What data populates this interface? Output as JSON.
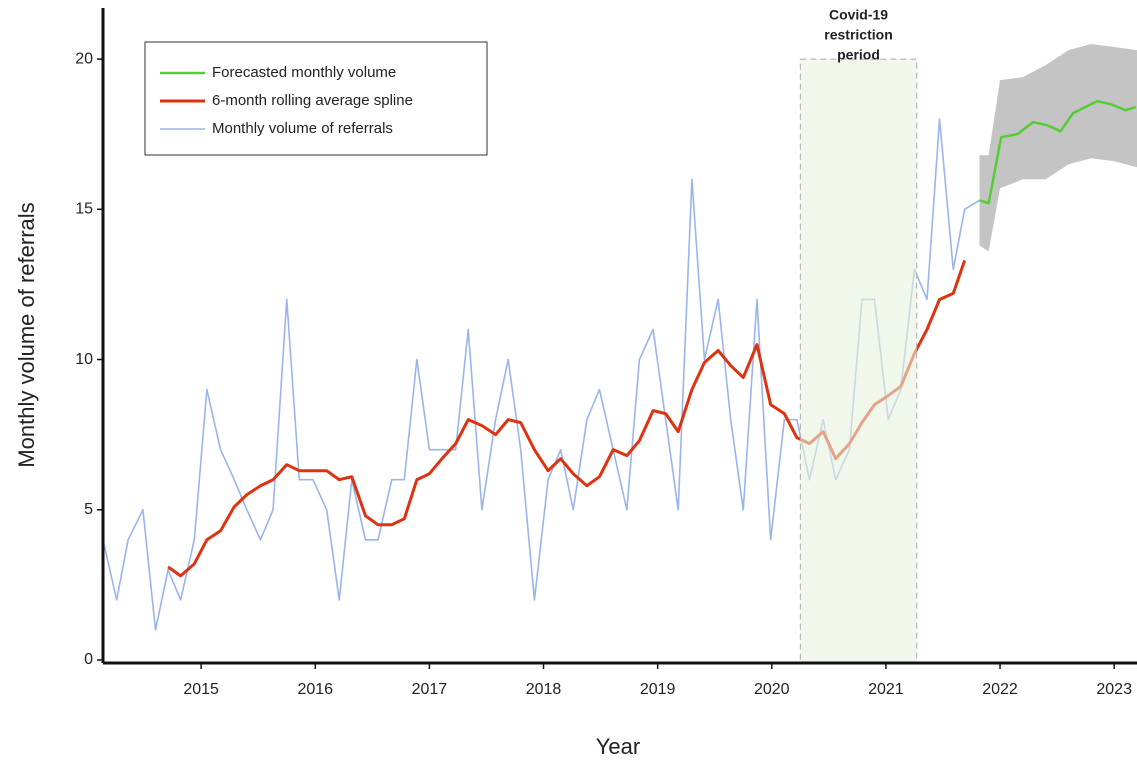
{
  "chart_data": {
    "type": "line",
    "x_label": "Year",
    "y_label": "Monthly volume of referrals",
    "xlim": [
      2014.14,
      2023.2
    ],
    "ylim": [
      -0.1,
      21.7
    ],
    "xticks": [
      2015,
      2016,
      2017,
      2018,
      2019,
      2020,
      2021,
      2022,
      2023
    ],
    "yticks": [
      0,
      5,
      10,
      15,
      20
    ],
    "covid_period": [
      2020.25,
      2021.27
    ],
    "covid_label": [
      "Covid-19",
      "restriction",
      "period"
    ],
    "covid_color": "#e8f2dc",
    "forecast_band": {
      "color": "#c4c4c4",
      "x": [
        2021.82,
        2021.9,
        2022.0,
        2022.2,
        2022.4,
        2022.6,
        2022.8,
        2023.0,
        2023.2
      ],
      "lower": [
        13.8,
        13.6,
        15.7,
        16.0,
        16.0,
        16.5,
        16.7,
        16.6,
        16.4
      ],
      "upper": [
        16.8,
        16.8,
        19.3,
        19.4,
        19.8,
        20.3,
        20.5,
        20.4,
        20.3
      ]
    },
    "series": [
      {
        "name": "Forecasted monthly volume",
        "color": "#55cc33",
        "x": [
          2021.82,
          2021.9,
          2022.01,
          2022.15,
          2022.29,
          2022.41,
          2022.53,
          2022.64,
          2022.85,
          2022.97,
          2023.1,
          2023.19
        ],
        "values": [
          15.3,
          15.2,
          17.4,
          17.5,
          17.9,
          17.8,
          17.6,
          18.2,
          18.6,
          18.5,
          18.3,
          18.4
        ]
      },
      {
        "name": "6-month rolling average spline",
        "color": "#dd3311",
        "x": [
          2014.71,
          2014.82,
          2014.94,
          2015.05,
          2015.17,
          2015.29,
          2015.4,
          2015.52,
          2015.63,
          2015.75,
          2015.86,
          2015.98,
          2016.1,
          2016.21,
          2016.32,
          2016.44,
          2016.55,
          2016.67,
          2016.78,
          2016.89,
          2017.0,
          2017.11,
          2017.23,
          2017.34,
          2017.46,
          2017.58,
          2017.69,
          2017.8,
          2017.92,
          2018.04,
          2018.15,
          2018.26,
          2018.38,
          2018.49,
          2018.61,
          2018.73,
          2018.84,
          2018.96,
          2019.07,
          2019.18,
          2019.3,
          2019.41,
          2019.53,
          2019.64,
          2019.75,
          2019.87,
          2019.99,
          2020.11,
          2020.22,
          2020.33,
          2020.45,
          2020.56,
          2020.68,
          2020.79,
          2020.9,
          2021.02,
          2021.13,
          2021.25,
          2021.36,
          2021.47,
          2021.59,
          2021.69
        ],
        "values": [
          3.1,
          2.8,
          3.2,
          4.0,
          4.3,
          5.1,
          5.5,
          5.8,
          6.0,
          6.5,
          6.3,
          6.3,
          6.3,
          6.0,
          6.1,
          4.8,
          4.5,
          4.5,
          4.7,
          6.0,
          6.2,
          6.7,
          7.2,
          8.0,
          7.8,
          7.5,
          8.0,
          7.9,
          7.0,
          6.3,
          6.7,
          6.2,
          5.8,
          6.1,
          7.0,
          6.8,
          7.3,
          8.3,
          8.2,
          7.6,
          9.0,
          9.9,
          10.3,
          9.8,
          9.4,
          10.5,
          8.5,
          8.2,
          7.4,
          7.2,
          7.6,
          6.7,
          7.2,
          7.9,
          8.5,
          8.8,
          9.1,
          10.2,
          11.0,
          12.0,
          12.2,
          13.3
        ]
      },
      {
        "name": "Monthly volume of referrals",
        "color": "#99b4ee",
        "x": [
          2014.14,
          2014.26,
          2014.36,
          2014.49,
          2014.6,
          2014.71,
          2014.82,
          2014.94,
          2015.05,
          2015.17,
          2015.29,
          2015.4,
          2015.52,
          2015.63,
          2015.75,
          2015.86,
          2015.98,
          2016.1,
          2016.21,
          2016.32,
          2016.44,
          2016.55,
          2016.67,
          2016.78,
          2016.89,
          2017.0,
          2017.11,
          2017.23,
          2017.34,
          2017.46,
          2017.58,
          2017.69,
          2017.8,
          2017.92,
          2018.04,
          2018.15,
          2018.26,
          2018.38,
          2018.49,
          2018.61,
          2018.73,
          2018.84,
          2018.96,
          2019.07,
          2019.18,
          2019.3,
          2019.41,
          2019.53,
          2019.64,
          2019.75,
          2019.87,
          2019.99,
          2020.11,
          2020.22,
          2020.33,
          2020.45,
          2020.56,
          2020.68,
          2020.79,
          2020.9,
          2021.02,
          2021.13,
          2021.25,
          2021.36,
          2021.47,
          2021.59,
          2021.69,
          2021.82
        ],
        "values": [
          4,
          2,
          4,
          5,
          1,
          3,
          2,
          4,
          9,
          7,
          6,
          5,
          4,
          5,
          12,
          6,
          6,
          5,
          2,
          6,
          4,
          4,
          6,
          6,
          10,
          7,
          7,
          7,
          11,
          5,
          8,
          10,
          7,
          2,
          6,
          7,
          5,
          8,
          9,
          7,
          5,
          10,
          11,
          8,
          5,
          16,
          10,
          12,
          8,
          5,
          12,
          4,
          8,
          8,
          6,
          8,
          6,
          7,
          12,
          12,
          8,
          9,
          13,
          12,
          18,
          13,
          15,
          15.3
        ]
      }
    ]
  }
}
